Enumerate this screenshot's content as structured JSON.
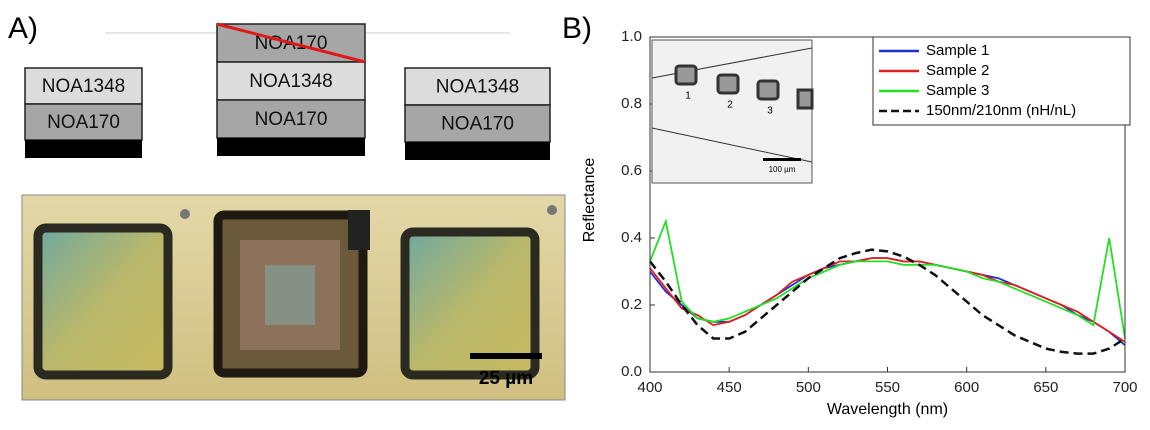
{
  "panel_a": {
    "label": "A)",
    "stacks": [
      {
        "layers": [
          "NOA1348",
          "NOA170"
        ]
      },
      {
        "layers": [
          "NOA170",
          "NOA1348",
          "NOA170"
        ]
      },
      {
        "layers": [
          "NOA1348",
          "NOA170"
        ]
      }
    ],
    "scale_bar": "25 µm"
  },
  "chart_data": {
    "type": "line",
    "panel_label": "B)",
    "x_label": "Wavelength (nm)",
    "y_label": "Reflectance",
    "x": [
      400,
      410,
      420,
      430,
      440,
      450,
      460,
      470,
      480,
      490,
      500,
      510,
      520,
      530,
      540,
      550,
      560,
      570,
      580,
      590,
      600,
      610,
      620,
      630,
      640,
      650,
      660,
      670,
      680,
      690,
      700
    ],
    "series": [
      {
        "name": "Sample 1",
        "color": "#1f2fd0",
        "dash": false,
        "values": [
          0.3,
          0.24,
          0.2,
          0.16,
          0.15,
          0.15,
          0.17,
          0.2,
          0.23,
          0.26,
          0.29,
          0.31,
          0.32,
          0.33,
          0.34,
          0.34,
          0.33,
          0.33,
          0.32,
          0.31,
          0.3,
          0.29,
          0.28,
          0.26,
          0.24,
          0.22,
          0.2,
          0.17,
          0.15,
          0.12,
          0.08
        ]
      },
      {
        "name": "Sample 2",
        "color": "#e02020",
        "dash": false,
        "values": [
          0.31,
          0.25,
          0.19,
          0.17,
          0.14,
          0.15,
          0.17,
          0.2,
          0.23,
          0.27,
          0.29,
          0.31,
          0.33,
          0.33,
          0.34,
          0.34,
          0.33,
          0.33,
          0.32,
          0.31,
          0.3,
          0.29,
          0.27,
          0.26,
          0.24,
          0.22,
          0.2,
          0.18,
          0.15,
          0.12,
          0.09
        ]
      },
      {
        "name": "Sample 3",
        "color": "#22e022",
        "dash": false,
        "values": [
          0.33,
          0.45,
          0.21,
          0.16,
          0.15,
          0.16,
          0.18,
          0.2,
          0.22,
          0.25,
          0.28,
          0.3,
          0.32,
          0.33,
          0.33,
          0.33,
          0.32,
          0.32,
          0.32,
          0.31,
          0.3,
          0.28,
          0.27,
          0.25,
          0.23,
          0.21,
          0.19,
          0.17,
          0.14,
          0.4,
          0.1
        ]
      },
      {
        "name": "150nm/210nm  (nH/nL)",
        "color": "#111111",
        "dash": true,
        "values": [
          0.33,
          0.27,
          0.2,
          0.14,
          0.1,
          0.1,
          0.12,
          0.16,
          0.2,
          0.24,
          0.28,
          0.31,
          0.34,
          0.355,
          0.365,
          0.36,
          0.345,
          0.32,
          0.29,
          0.25,
          0.21,
          0.17,
          0.14,
          0.11,
          0.09,
          0.07,
          0.06,
          0.055,
          0.055,
          0.07,
          0.1
        ]
      }
    ],
    "xlim": [
      400,
      700
    ],
    "ylim": [
      0,
      1.0
    ],
    "xticks": [
      400,
      450,
      500,
      550,
      600,
      650,
      700
    ],
    "yticks": [
      {
        "value": 0,
        "label": "0.0"
      },
      0.2,
      0.4,
      0.6,
      0.8,
      {
        "value": 1.0,
        "label": "1.0"
      }
    ],
    "legend": "upper right",
    "inset": {
      "labels": [
        "1",
        "2",
        "3"
      ],
      "scale_bar": "100 µm"
    }
  }
}
